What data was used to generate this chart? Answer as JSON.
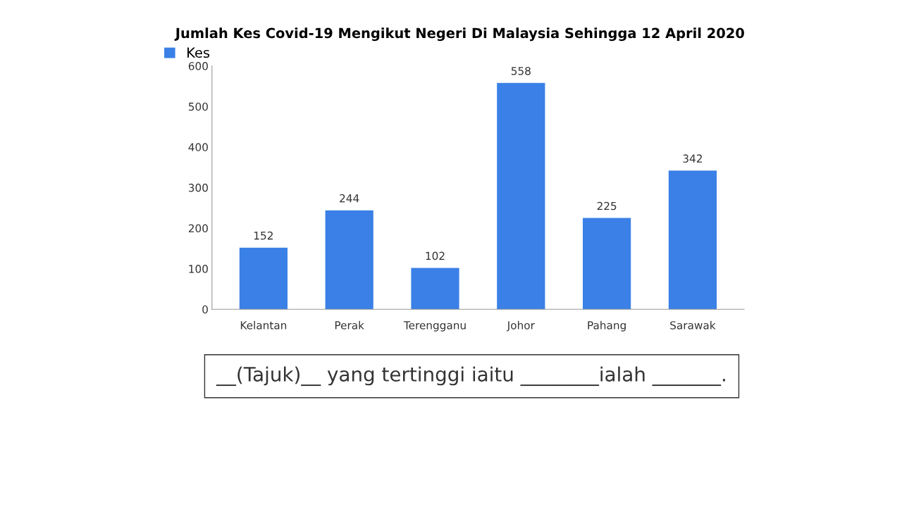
{
  "chart_data": {
    "type": "bar",
    "title": "Jumlah Kes Covid-19 Mengikut Negeri Di Malaysia Sehingga 12 April 2020",
    "categories": [
      "Kelantan",
      "Perak",
      "Terengganu",
      "Johor",
      "Pahang",
      "Sarawak"
    ],
    "series": [
      {
        "name": "Kes",
        "color": "#3a80e6",
        "values": [
          152,
          244,
          102,
          558,
          225,
          342
        ]
      }
    ],
    "ylim": [
      0,
      600
    ],
    "yticks": [
      0,
      100,
      200,
      300,
      400,
      500,
      600
    ],
    "grid": false,
    "legend": "top left",
    "data_labels": true,
    "annotations": [
      "__(Tajuk)__ yang tertinggi iaitu ________ialah _______."
    ]
  }
}
